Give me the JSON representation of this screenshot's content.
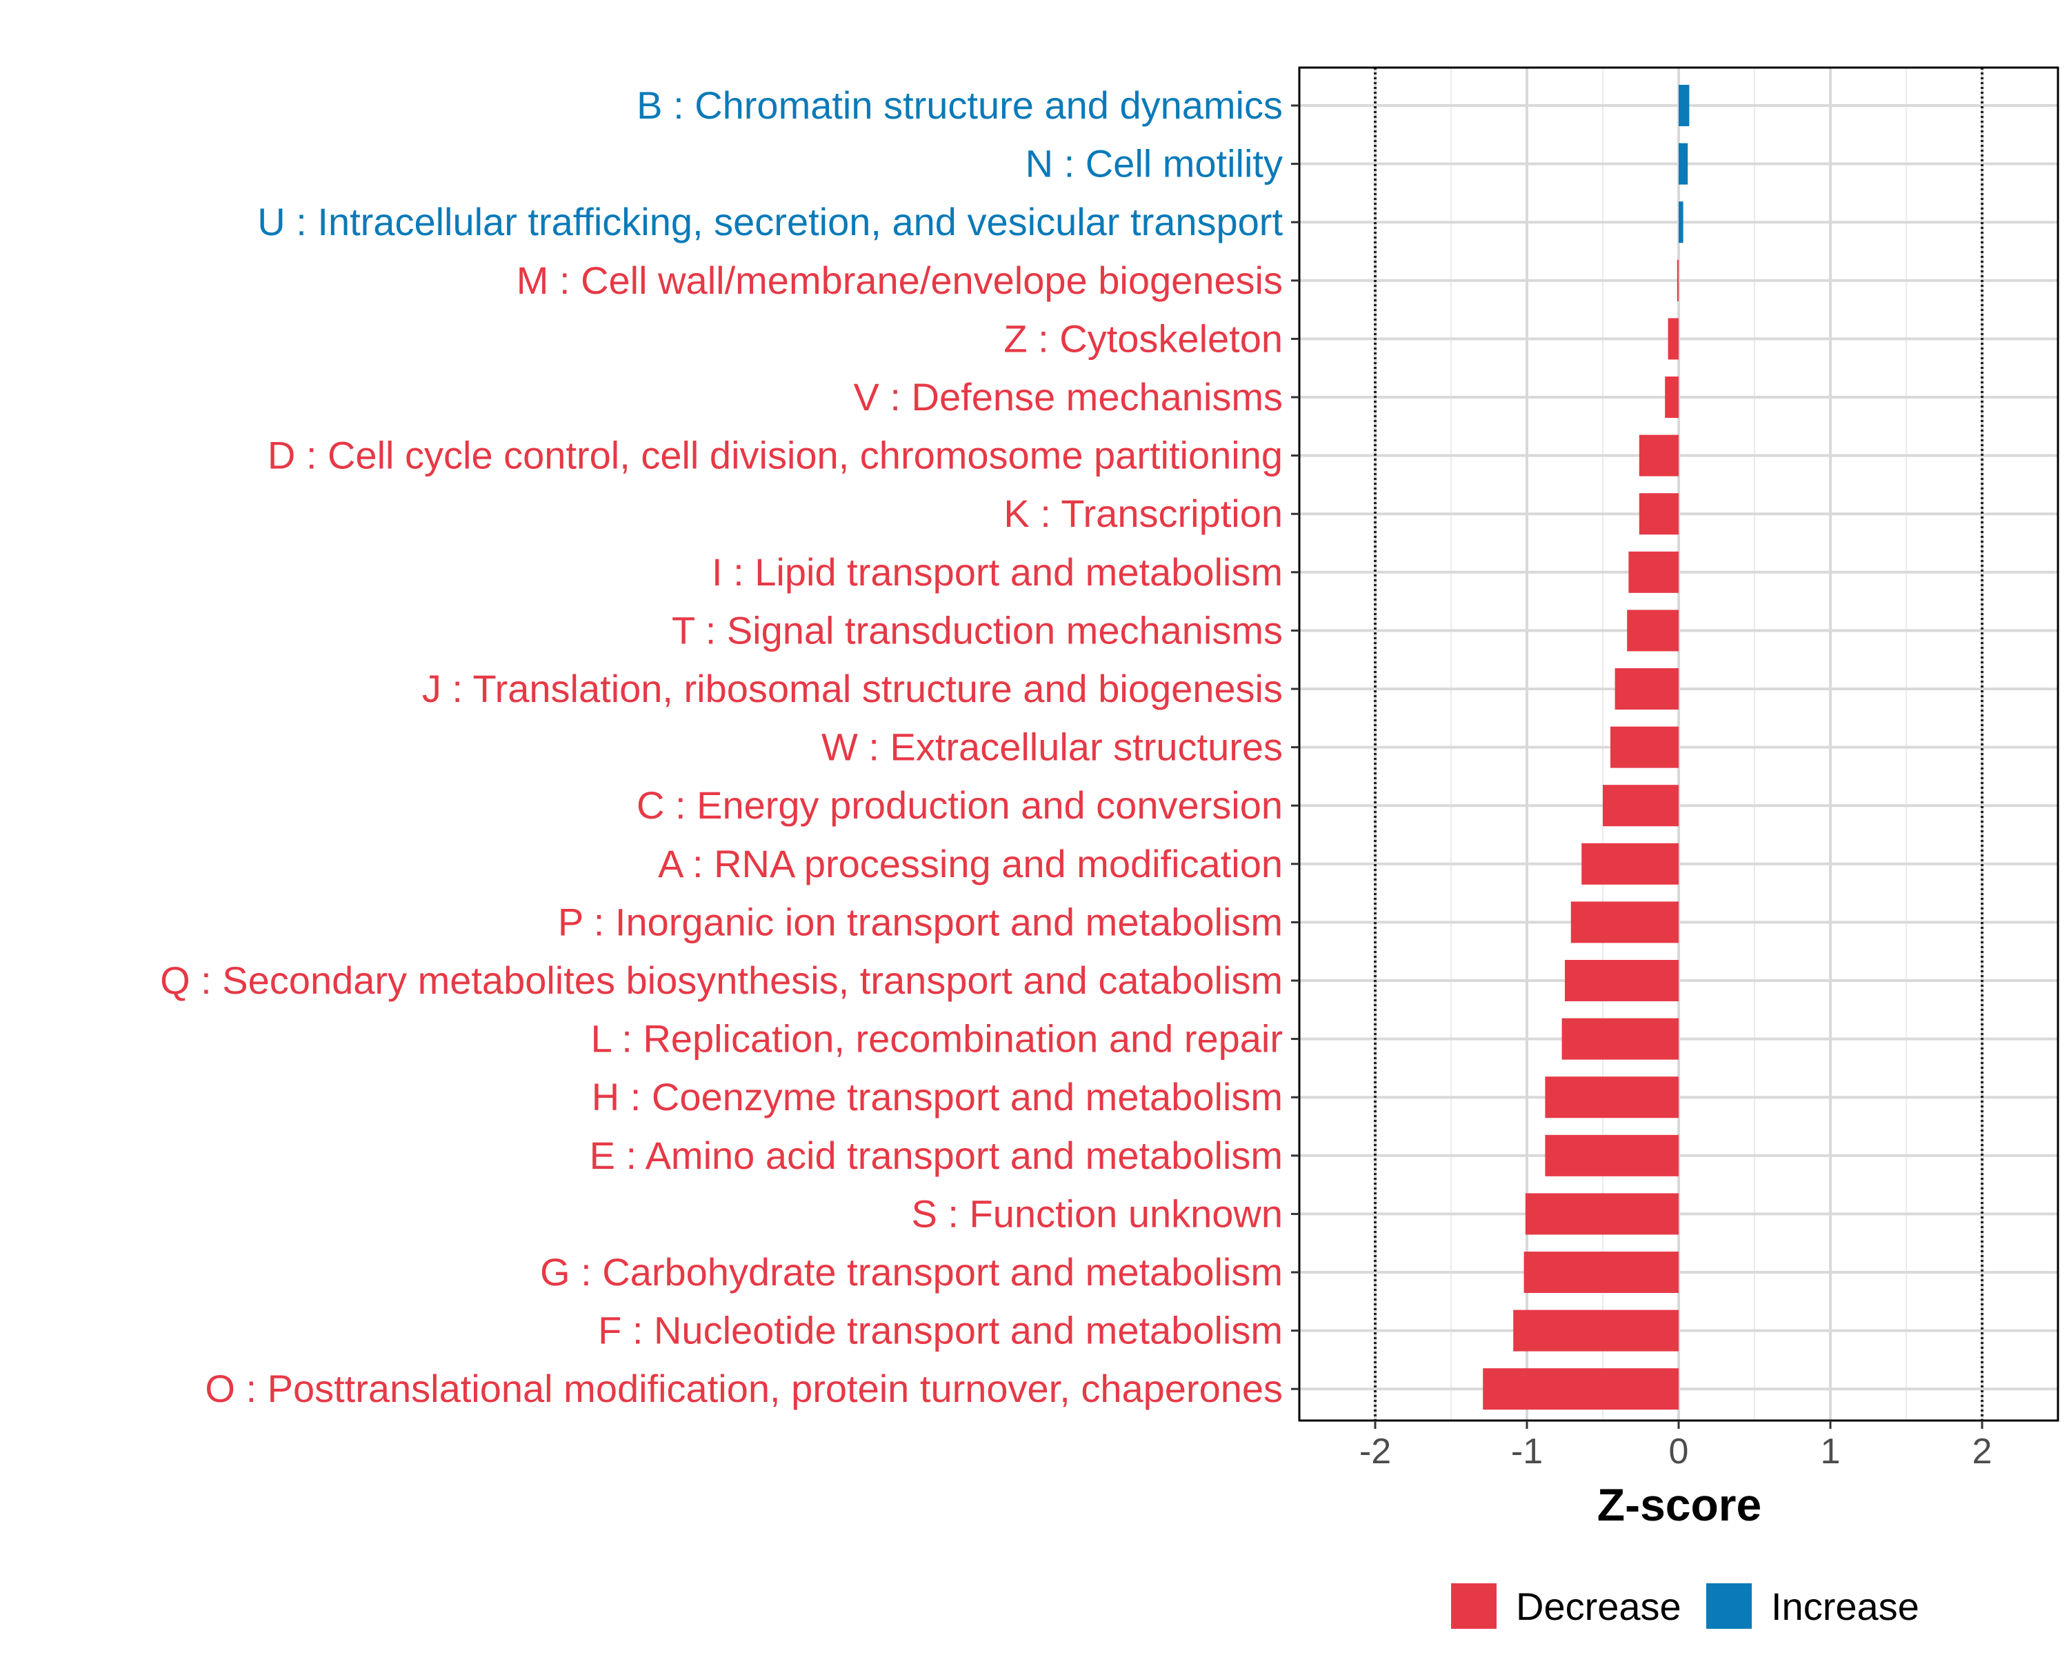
{
  "chart_data": {
    "type": "bar",
    "orientation": "horizontal",
    "xlabel": "Z-score",
    "xlim": [
      -2.5,
      2.5
    ],
    "xticks": [
      -2,
      -1,
      0,
      1,
      2
    ],
    "xtick_labels": [
      "-2",
      "-1",
      "0",
      "1",
      "2"
    ],
    "reference_lines": [
      -2,
      2
    ],
    "grid": true,
    "legend_position": "bottom",
    "colors": {
      "Decrease": "#e63946",
      "Increase": "#0a7ab8"
    },
    "legend": [
      {
        "label": "Decrease",
        "color": "#e63946"
      },
      {
        "label": "Increase",
        "color": "#0a7ab8"
      }
    ],
    "categories": [
      "B : Chromatin structure and dynamics",
      "N : Cell motility",
      "U : Intracellular trafficking, secretion, and vesicular transport",
      "M : Cell wall/membrane/envelope biogenesis",
      "Z : Cytoskeleton",
      "V : Defense mechanisms",
      "D : Cell cycle control, cell division, chromosome partitioning",
      "K : Transcription",
      "I : Lipid transport and metabolism",
      "T : Signal transduction mechanisms",
      "J : Translation, ribosomal structure and biogenesis",
      "W : Extracellular structures",
      "C : Energy production and conversion",
      "A : RNA processing and modification",
      "P : Inorganic ion transport and metabolism",
      "Q : Secondary metabolites biosynthesis, transport and catabolism",
      "L : Replication, recombination and repair",
      "H : Coenzyme transport and metabolism",
      "E : Amino acid transport and metabolism",
      "S : Function unknown",
      "G : Carbohydrate transport and metabolism",
      "F : Nucleotide transport and metabolism",
      "O : Posttranslational modification, protein turnover, chaperones"
    ],
    "values": [
      0.07,
      0.06,
      0.03,
      -0.01,
      -0.07,
      -0.09,
      -0.26,
      -0.26,
      -0.33,
      -0.34,
      -0.42,
      -0.45,
      -0.5,
      -0.64,
      -0.71,
      -0.75,
      -0.77,
      -0.88,
      -0.88,
      -1.01,
      -1.02,
      -1.09,
      -1.29
    ],
    "groups": [
      "Increase",
      "Increase",
      "Increase",
      "Decrease",
      "Decrease",
      "Decrease",
      "Decrease",
      "Decrease",
      "Decrease",
      "Decrease",
      "Decrease",
      "Decrease",
      "Decrease",
      "Decrease",
      "Decrease",
      "Decrease",
      "Decrease",
      "Decrease",
      "Decrease",
      "Decrease",
      "Decrease",
      "Decrease",
      "Decrease"
    ]
  }
}
